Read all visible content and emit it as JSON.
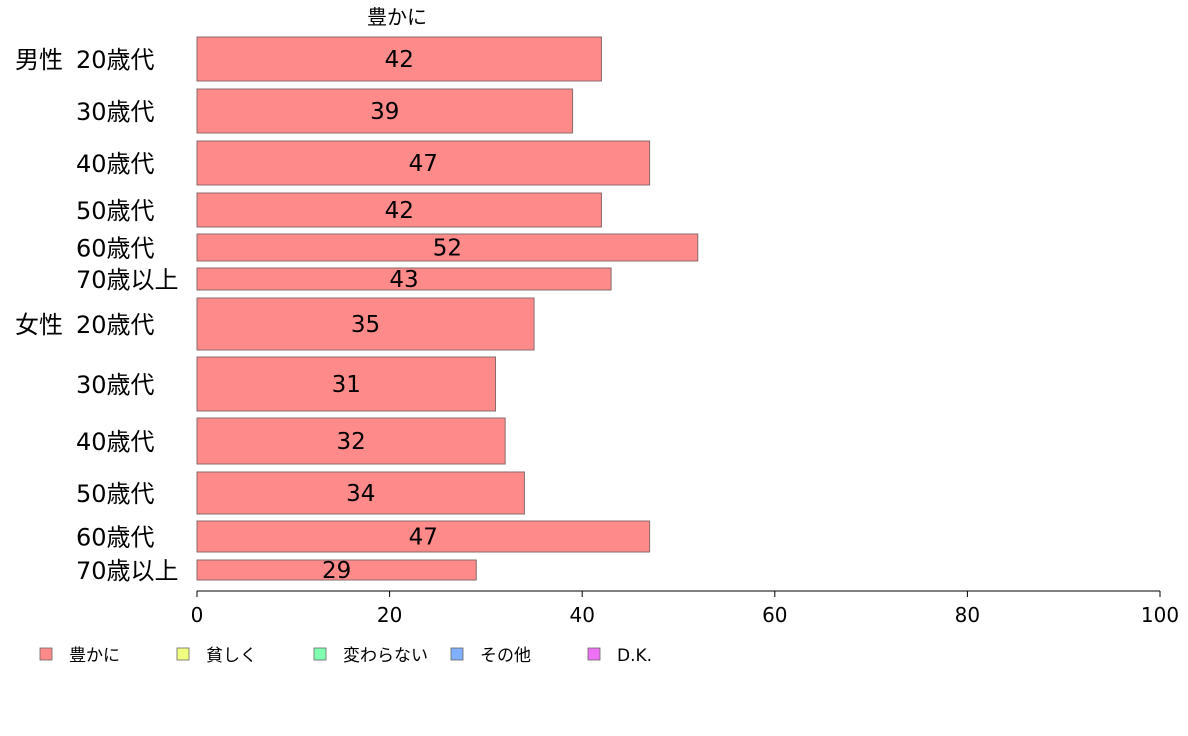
{
  "chart_data": {
    "type": "bar",
    "orientation": "horizontal",
    "series_title": "豊かに",
    "groups": [
      {
        "label": "男性",
        "categories": [
          "20歳代",
          "30歳代",
          "40歳代",
          "50歳代",
          "60歳代",
          "70歳以上"
        ],
        "values": [
          42,
          39,
          47,
          42,
          52,
          43
        ]
      },
      {
        "label": "女性",
        "categories": [
          "20歳代",
          "30歳代",
          "40歳代",
          "50歳代",
          "60歳代",
          "70歳以上"
        ],
        "values": [
          35,
          31,
          32,
          34,
          47,
          29
        ]
      }
    ],
    "xlim": [
      0,
      100
    ],
    "x_ticks": [
      0,
      20,
      40,
      60,
      80,
      100
    ],
    "grid": false,
    "legend_position": "bottom",
    "legend": [
      {
        "name": "豊かに",
        "color": "#ff8a8a"
      },
      {
        "name": "貧しく",
        "color": "#f0ff80"
      },
      {
        "name": "変わらない",
        "color": "#80ffb0"
      },
      {
        "name": "その他",
        "color": "#80b0ff"
      },
      {
        "name": "D.K.",
        "color": "#ee70f5"
      }
    ],
    "bar_color": "#ff8a8a",
    "bar_stroke": "#8a6a6a"
  }
}
